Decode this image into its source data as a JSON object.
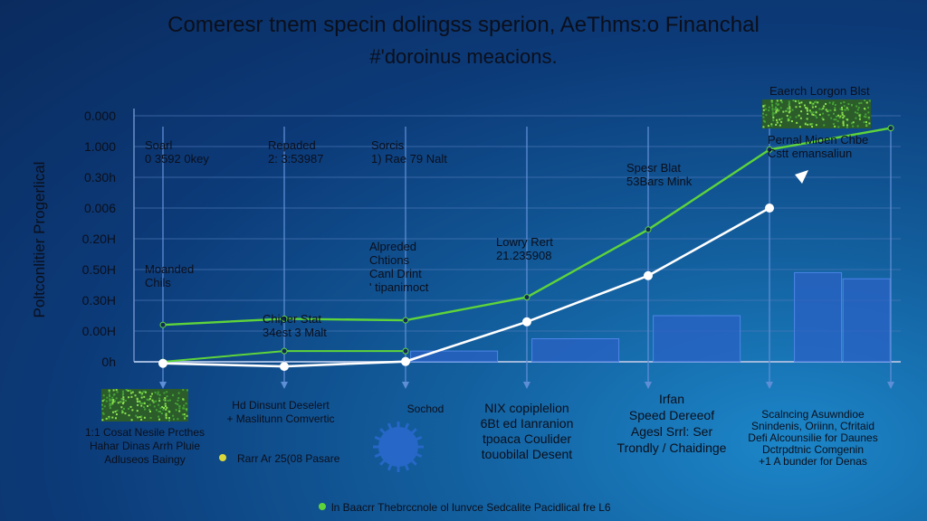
{
  "title": "Comeresr tnem specin dolingss sperion, AeThms:o Financhal",
  "subtitle": "#'doroinus meacions.",
  "colors": {
    "green": "#5ed43a",
    "white": "#ffffff",
    "bar": "#2a62c4",
    "bar_edge": "#4d86e6",
    "marker": "#2f7d2a"
  },
  "chart_data": {
    "type": "line",
    "ylabel": "Poltconlitier Progerlical",
    "yticks": [
      "0.000",
      "1.000",
      "0.30h",
      "0.006",
      "0.20H",
      "0.50H",
      "0.30H",
      "0.00H",
      "0h"
    ],
    "x": [
      0,
      1,
      2,
      3,
      4,
      5,
      6
    ],
    "ylim": [
      0,
      8
    ],
    "series": [
      {
        "points": [
          [
            0,
            1.2
          ],
          [
            1,
            1.4
          ],
          [
            2,
            1.35
          ],
          [
            3,
            2.1
          ],
          [
            4,
            4.3
          ],
          [
            5,
            6.9
          ],
          [
            6,
            7.6
          ]
        ]
      },
      {
        "points": [
          [
            0,
            0
          ],
          [
            1,
            0.35
          ],
          [
            2,
            0.35
          ]
        ]
      },
      {
        "points": [
          [
            0,
            -0.05
          ],
          [
            1,
            -0.15
          ],
          [
            2,
            0.01
          ],
          [
            3,
            1.3
          ],
          [
            4,
            2.8
          ],
          [
            5,
            5.0
          ]
        ]
      }
    ],
    "bars": [
      {
        "x": 2.4,
        "value": 0.35
      },
      {
        "x": 3.4,
        "value": 0.75
      },
      {
        "x": 4.4,
        "value": 1.5
      },
      {
        "x": 5.4,
        "value": 2.9
      },
      {
        "x": 5.8,
        "value": 2.7
      }
    ],
    "annotations": [
      {
        "lines": [
          "Soarl",
          "0 3592 0key"
        ]
      },
      {
        "lines": [
          "Repaded",
          "2: 3:53987"
        ]
      },
      {
        "lines": [
          "Sorcis",
          "1) Rae 79 Nalt"
        ]
      },
      {
        "lines": [
          "Moanded",
          "Chils"
        ]
      },
      {
        "lines": [
          "Chiper Stat",
          "34est 3 Malt"
        ]
      },
      {
        "lines": [
          "Alpreded",
          "Chtions",
          "Canl Drint",
          "' tipanimoct"
        ]
      },
      {
        "lines": [
          "Lowry Rert",
          "21.235908"
        ]
      },
      {
        "lines": [
          "Spesr Blat",
          "53Bars Mink"
        ]
      },
      {
        "lines": [
          "Eaerch Lorgon Blst"
        ]
      },
      {
        "lines": [
          "Pernal Mioen Chbe",
          "Cstt emansaliun"
        ]
      }
    ]
  },
  "bottom": {
    "col1": [
      "1:1 Cosat Nesile Prcthes",
      "Hahar Dinas Arrh Pluie",
      "Adluseos Baingy"
    ],
    "col2": [
      "Hd Dinsunt Deselert",
      "+ Maslitunn Comvertic"
    ],
    "col3": [
      "Sochod"
    ],
    "col4": [
      "NIX copiplelion",
      "6Bt ed Ianranion",
      "tpoaca Coulider",
      "touobilal Desent"
    ],
    "col5": [
      "Irfan",
      "Speed Dereeof",
      "Agesl Srrl: Ser",
      "Trondly / Chaidinge"
    ],
    "col6": [
      "Scalncing Asuwndioe",
      "Snindenis, Oriinn, Cfritaid",
      "Defi Alcounsilie for Daunes",
      "Dctrpdtnic Comgenin",
      "+1 A bunder for Denas"
    ],
    "legend1": "Rarr Ar 25(08 Pasare",
    "footer": "ln Baacrr Thebrccnole ol lunvce Sedcalite Pacidlical fre L6"
  }
}
